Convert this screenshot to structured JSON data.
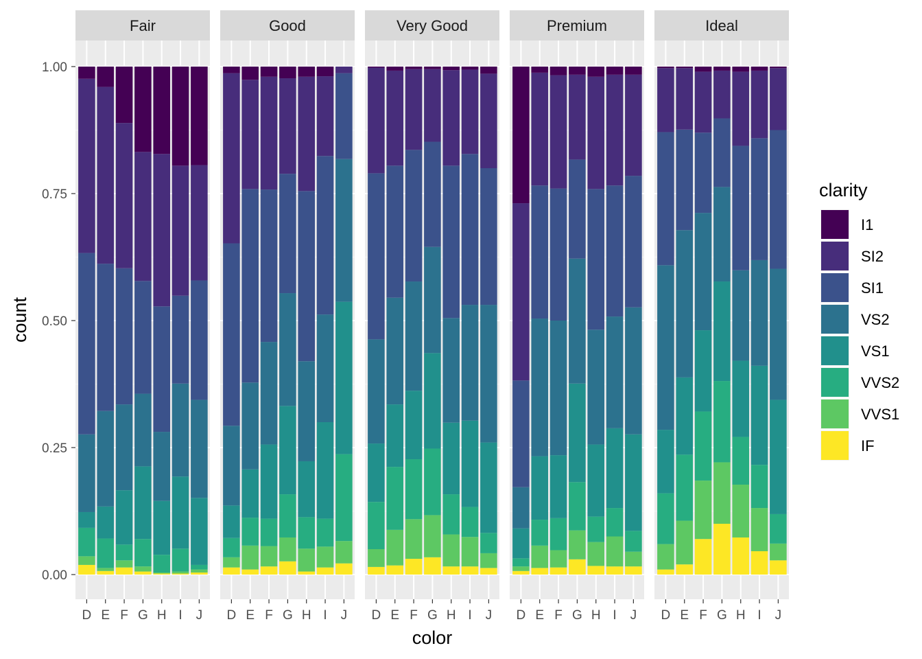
{
  "chart_data": {
    "type": "bar",
    "stacked": true,
    "position": "fill",
    "xlabel": "color",
    "ylabel": "count",
    "ylim": [
      0,
      1
    ],
    "y_ticks": [
      "0.00",
      "0.25",
      "0.50",
      "0.75",
      "1.00"
    ],
    "categories": [
      "D",
      "E",
      "F",
      "G",
      "H",
      "I",
      "J"
    ],
    "legend": {
      "title": "clarity",
      "placement": "right",
      "items": [
        "I1",
        "SI2",
        "SI1",
        "VS2",
        "VS1",
        "VVS2",
        "VVS1",
        "IF"
      ]
    },
    "stack_order": [
      "IF",
      "VVS1",
      "VVS2",
      "VS1",
      "VS2",
      "SI1",
      "SI2",
      "I1"
    ],
    "colors": {
      "I1": "#440154",
      "SI2": "#472D7B",
      "SI1": "#3B528B",
      "VS2": "#2C728E",
      "VS1": "#21908C",
      "VVS2": "#27AD81",
      "VVS1": "#5DC863",
      "IF": "#FDE725"
    },
    "grid": true,
    "facets": [
      {
        "name": "Fair",
        "bars": [
          {
            "IF": 0.019,
            "VVS1": 0.017,
            "VVS2": 0.056,
            "VS1": 0.031,
            "VS2": 0.153,
            "SI1": 0.357,
            "SI2": 0.343,
            "I1": 0.024
          },
          {
            "IF": 0.007,
            "VVS1": 0.006,
            "VVS2": 0.058,
            "VS1": 0.063,
            "VS2": 0.188,
            "SI1": 0.29,
            "SI2": 0.348,
            "I1": 0.04
          },
          {
            "IF": 0.014,
            "VVS1": 0.014,
            "VVS2": 0.031,
            "VS1": 0.107,
            "VS2": 0.169,
            "SI1": 0.268,
            "SI2": 0.286,
            "I1": 0.111
          },
          {
            "IF": 0.006,
            "VVS1": 0.01,
            "VVS2": 0.054,
            "VS1": 0.143,
            "VS2": 0.143,
            "SI1": 0.222,
            "SI2": 0.254,
            "I1": 0.168
          },
          {
            "IF": 0.002,
            "VVS1": 0.002,
            "VVS2": 0.035,
            "VS1": 0.106,
            "VS2": 0.136,
            "SI1": 0.247,
            "SI2": 0.3,
            "I1": 0.172
          },
          {
            "IF": 0.002,
            "VVS1": 0.004,
            "VVS2": 0.045,
            "VS1": 0.142,
            "VS2": 0.183,
            "SI1": 0.173,
            "SI2": 0.256,
            "I1": 0.195
          },
          {
            "IF": 0.004,
            "VVS1": 0.006,
            "VVS2": 0.009,
            "VS1": 0.132,
            "VS2": 0.193,
            "SI1": 0.235,
            "SI2": 0.227,
            "I1": 0.194
          }
        ]
      },
      {
        "name": "Good",
        "bars": [
          {
            "IF": 0.014,
            "VVS1": 0.02,
            "VVS2": 0.038,
            "VS1": 0.064,
            "VS2": 0.157,
            "SI1": 0.359,
            "SI2": 0.335,
            "I1": 0.013
          },
          {
            "IF": 0.01,
            "VVS1": 0.047,
            "VVS2": 0.055,
            "VS1": 0.095,
            "VS2": 0.171,
            "SI1": 0.381,
            "SI2": 0.215,
            "I1": 0.026
          },
          {
            "IF": 0.016,
            "VVS1": 0.04,
            "VVS2": 0.054,
            "VS1": 0.146,
            "VS2": 0.202,
            "SI1": 0.3,
            "SI2": 0.222,
            "I1": 0.02
          },
          {
            "IF": 0.026,
            "VVS1": 0.047,
            "VVS2": 0.085,
            "VS1": 0.174,
            "VS2": 0.222,
            "SI1": 0.235,
            "SI2": 0.188,
            "I1": 0.023
          },
          {
            "IF": 0.006,
            "VVS1": 0.045,
            "VVS2": 0.062,
            "VS1": 0.11,
            "VS2": 0.197,
            "SI1": 0.335,
            "SI2": 0.225,
            "I1": 0.02
          },
          {
            "IF": 0.014,
            "VVS1": 0.041,
            "VVS2": 0.055,
            "VS1": 0.19,
            "VS2": 0.212,
            "SI1": 0.312,
            "SI2": 0.157,
            "I1": 0.019
          },
          {
            "IF": 0.022,
            "VVS1": 0.044,
            "VVS2": 0.171,
            "VS1": 0.3,
            "VS2": 0.281,
            "SI1": 0.169,
            "SI2": 0.013,
            "I1": 0.0
          }
        ]
      },
      {
        "name": "Very Good",
        "bars": [
          {
            "IF": 0.015,
            "VVS1": 0.035,
            "VVS2": 0.093,
            "VS1": 0.115,
            "VS2": 0.205,
            "SI1": 0.327,
            "SI2": 0.208,
            "I1": 0.002
          },
          {
            "IF": 0.018,
            "VVS1": 0.07,
            "VVS2": 0.124,
            "VS1": 0.123,
            "VS2": 0.21,
            "SI1": 0.26,
            "SI2": 0.187,
            "I1": 0.008
          },
          {
            "IF": 0.031,
            "VVS1": 0.078,
            "VVS2": 0.118,
            "VS1": 0.135,
            "VS2": 0.215,
            "SI1": 0.259,
            "SI2": 0.159,
            "I1": 0.005
          },
          {
            "IF": 0.034,
            "VVS1": 0.083,
            "VVS2": 0.131,
            "VS1": 0.188,
            "VS2": 0.209,
            "SI1": 0.207,
            "SI2": 0.143,
            "I1": 0.005
          },
          {
            "IF": 0.016,
            "VVS1": 0.063,
            "VVS2": 0.079,
            "VS1": 0.141,
            "VS2": 0.206,
            "SI1": 0.3,
            "SI2": 0.188,
            "I1": 0.007
          },
          {
            "IF": 0.016,
            "VVS1": 0.058,
            "VVS2": 0.059,
            "VS1": 0.17,
            "VS2": 0.228,
            "SI1": 0.297,
            "SI2": 0.166,
            "I1": 0.006
          },
          {
            "IF": 0.013,
            "VVS1": 0.029,
            "VVS2": 0.04,
            "VS1": 0.178,
            "VS2": 0.271,
            "SI1": 0.269,
            "SI2": 0.186,
            "I1": 0.014
          }
        ]
      },
      {
        "name": "Premium",
        "bars": [
          {
            "IF": 0.007,
            "VVS1": 0.009,
            "VVS2": 0.016,
            "VS1": 0.059,
            "VS2": 0.081,
            "SI1": 0.21,
            "SI2": 0.349,
            "I1": 0.269
          },
          {
            "IF": 0.013,
            "VVS1": 0.044,
            "VVS2": 0.051,
            "VS1": 0.125,
            "VS2": 0.271,
            "SI1": 0.262,
            "SI2": 0.222,
            "I1": 0.012
          },
          {
            "IF": 0.014,
            "VVS1": 0.034,
            "VVS2": 0.063,
            "VS1": 0.124,
            "VS2": 0.265,
            "SI1": 0.26,
            "SI2": 0.223,
            "I1": 0.017
          },
          {
            "IF": 0.03,
            "VVS1": 0.057,
            "VVS2": 0.095,
            "VS1": 0.194,
            "VS2": 0.246,
            "SI1": 0.195,
            "SI2": 0.167,
            "I1": 0.016
          },
          {
            "IF": 0.017,
            "VVS1": 0.047,
            "VVS2": 0.05,
            "VS1": 0.142,
            "VS2": 0.226,
            "SI1": 0.277,
            "SI2": 0.221,
            "I1": 0.02
          },
          {
            "IF": 0.016,
            "VVS1": 0.059,
            "VVS2": 0.056,
            "VS1": 0.157,
            "VS2": 0.22,
            "SI1": 0.258,
            "SI2": 0.218,
            "I1": 0.016
          },
          {
            "IF": 0.016,
            "VVS1": 0.029,
            "VVS2": 0.041,
            "VS1": 0.19,
            "VS2": 0.25,
            "SI1": 0.259,
            "SI2": 0.199,
            "I1": 0.016
          }
        ]
      },
      {
        "name": "Ideal",
        "bars": [
          {
            "IF": 0.01,
            "VVS1": 0.05,
            "VVS2": 0.1,
            "VS1": 0.125,
            "VS2": 0.324,
            "SI1": 0.262,
            "SI2": 0.126,
            "I1": 0.003
          },
          {
            "IF": 0.02,
            "VVS1": 0.086,
            "VVS2": 0.13,
            "VS1": 0.152,
            "VS2": 0.29,
            "SI1": 0.198,
            "SI2": 0.121,
            "I1": 0.003
          },
          {
            "IF": 0.07,
            "VVS1": 0.115,
            "VVS2": 0.136,
            "VS1": 0.16,
            "VS2": 0.231,
            "SI1": 0.158,
            "SI2": 0.12,
            "I1": 0.01
          },
          {
            "IF": 0.1,
            "VVS1": 0.121,
            "VVS2": 0.16,
            "VS1": 0.196,
            "VS2": 0.186,
            "SI1": 0.135,
            "SI2": 0.094,
            "I1": 0.008
          },
          {
            "IF": 0.073,
            "VVS1": 0.104,
            "VVS2": 0.094,
            "VS1": 0.15,
            "VS2": 0.178,
            "SI1": 0.245,
            "SI2": 0.146,
            "I1": 0.01
          },
          {
            "IF": 0.046,
            "VVS1": 0.085,
            "VVS2": 0.085,
            "VS1": 0.195,
            "VS2": 0.208,
            "SI1": 0.24,
            "SI2": 0.133,
            "I1": 0.008
          },
          {
            "IF": 0.028,
            "VVS1": 0.033,
            "VVS2": 0.058,
            "VS1": 0.225,
            "VS2": 0.258,
            "SI1": 0.273,
            "SI2": 0.122,
            "I1": 0.003
          }
        ]
      }
    ]
  }
}
